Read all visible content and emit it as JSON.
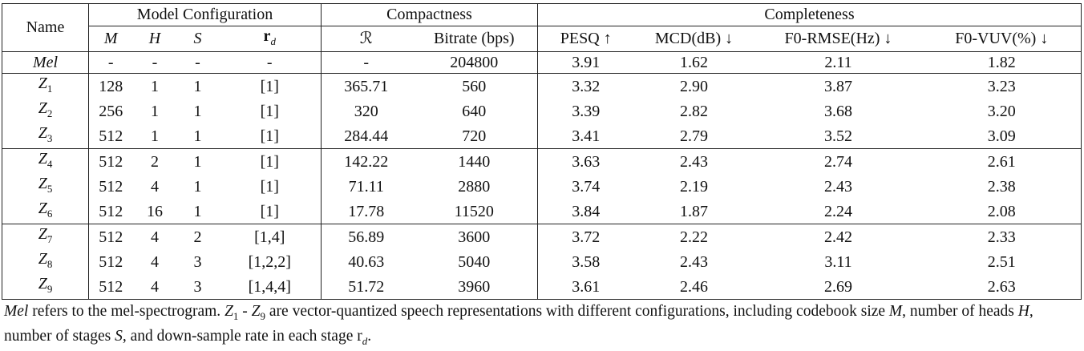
{
  "table": {
    "group_headers": [
      "Name",
      "Model Configuration",
      "Compactness",
      "Completeness"
    ],
    "columns": [
      {
        "text": "M"
      },
      {
        "text": "H"
      },
      {
        "text": "S"
      },
      {
        "text": "r",
        "sub": "d"
      },
      {
        "text": "ℛ"
      },
      {
        "text": "Bitrate (bps)"
      },
      {
        "text": "PESQ ↑"
      },
      {
        "text": "MCD(dB) ↓"
      },
      {
        "text": "F0-RMSE(Hz) ↓"
      },
      {
        "text": "F0-VUV(%) ↓"
      }
    ],
    "row_groups": [
      [
        [
          {
            "text": "Mel"
          },
          "-",
          "-",
          "-",
          "-",
          "-",
          "204800",
          "3.91",
          "1.62",
          "2.11",
          "1.82"
        ]
      ],
      [
        [
          {
            "text": "Z",
            "sub": "1"
          },
          "128",
          "1",
          "1",
          "[1]",
          "365.71",
          "560",
          "3.32",
          "2.90",
          "3.87",
          "3.23"
        ],
        [
          {
            "text": "Z",
            "sub": "2"
          },
          "256",
          "1",
          "1",
          "[1]",
          "320",
          "640",
          "3.39",
          "2.82",
          "3.68",
          "3.20"
        ],
        [
          {
            "text": "Z",
            "sub": "3"
          },
          "512",
          "1",
          "1",
          "[1]",
          "284.44",
          "720",
          "3.41",
          "2.79",
          "3.52",
          "3.09"
        ]
      ],
      [
        [
          {
            "text": "Z",
            "sub": "4"
          },
          "512",
          "2",
          "1",
          "[1]",
          "142.22",
          "1440",
          "3.63",
          "2.43",
          "2.74",
          "2.61"
        ],
        [
          {
            "text": "Z",
            "sub": "5"
          },
          "512",
          "4",
          "1",
          "[1]",
          "71.11",
          "2880",
          "3.74",
          "2.19",
          "2.43",
          "2.38"
        ],
        [
          {
            "text": "Z",
            "sub": "6"
          },
          "512",
          "16",
          "1",
          "[1]",
          "17.78",
          "11520",
          "3.84",
          "1.87",
          "2.24",
          "2.08"
        ]
      ],
      [
        [
          {
            "text": "Z",
            "sub": "7"
          },
          "512",
          "4",
          "2",
          "[1,4]",
          "56.89",
          "3600",
          "3.72",
          "2.22",
          "2.42",
          "2.33"
        ],
        [
          {
            "text": "Z",
            "sub": "8"
          },
          "512",
          "4",
          "3",
          "[1,2,2]",
          "40.63",
          "5040",
          "3.58",
          "2.43",
          "3.11",
          "2.51"
        ],
        [
          {
            "text": "Z",
            "sub": "9"
          },
          "512",
          "4",
          "3",
          "[1,4,4]",
          "51.72",
          "3960",
          "3.61",
          "2.46",
          "2.69",
          "2.63"
        ]
      ]
    ]
  },
  "caption": [
    {
      "text": "Mel",
      "italic": true
    },
    {
      "text": " refers to the mel-spectrogram. "
    },
    {
      "text": "Z",
      "italic": true
    },
    {
      "text": "1",
      "sub": true
    },
    {
      "text": " - "
    },
    {
      "text": "Z",
      "italic": true
    },
    {
      "text": "9",
      "sub": true
    },
    {
      "text": " are vector-quantized speech representations with different configurations, including codebook size "
    },
    {
      "text": "M",
      "italic": true
    },
    {
      "text": ", number of heads "
    },
    {
      "text": "H",
      "italic": true
    },
    {
      "text": ", number of stages "
    },
    {
      "text": "S",
      "italic": true
    },
    {
      "text": ", and down-sample rate in each stage r"
    },
    {
      "text": "d",
      "sub": true,
      "italic": true
    },
    {
      "text": "."
    }
  ]
}
